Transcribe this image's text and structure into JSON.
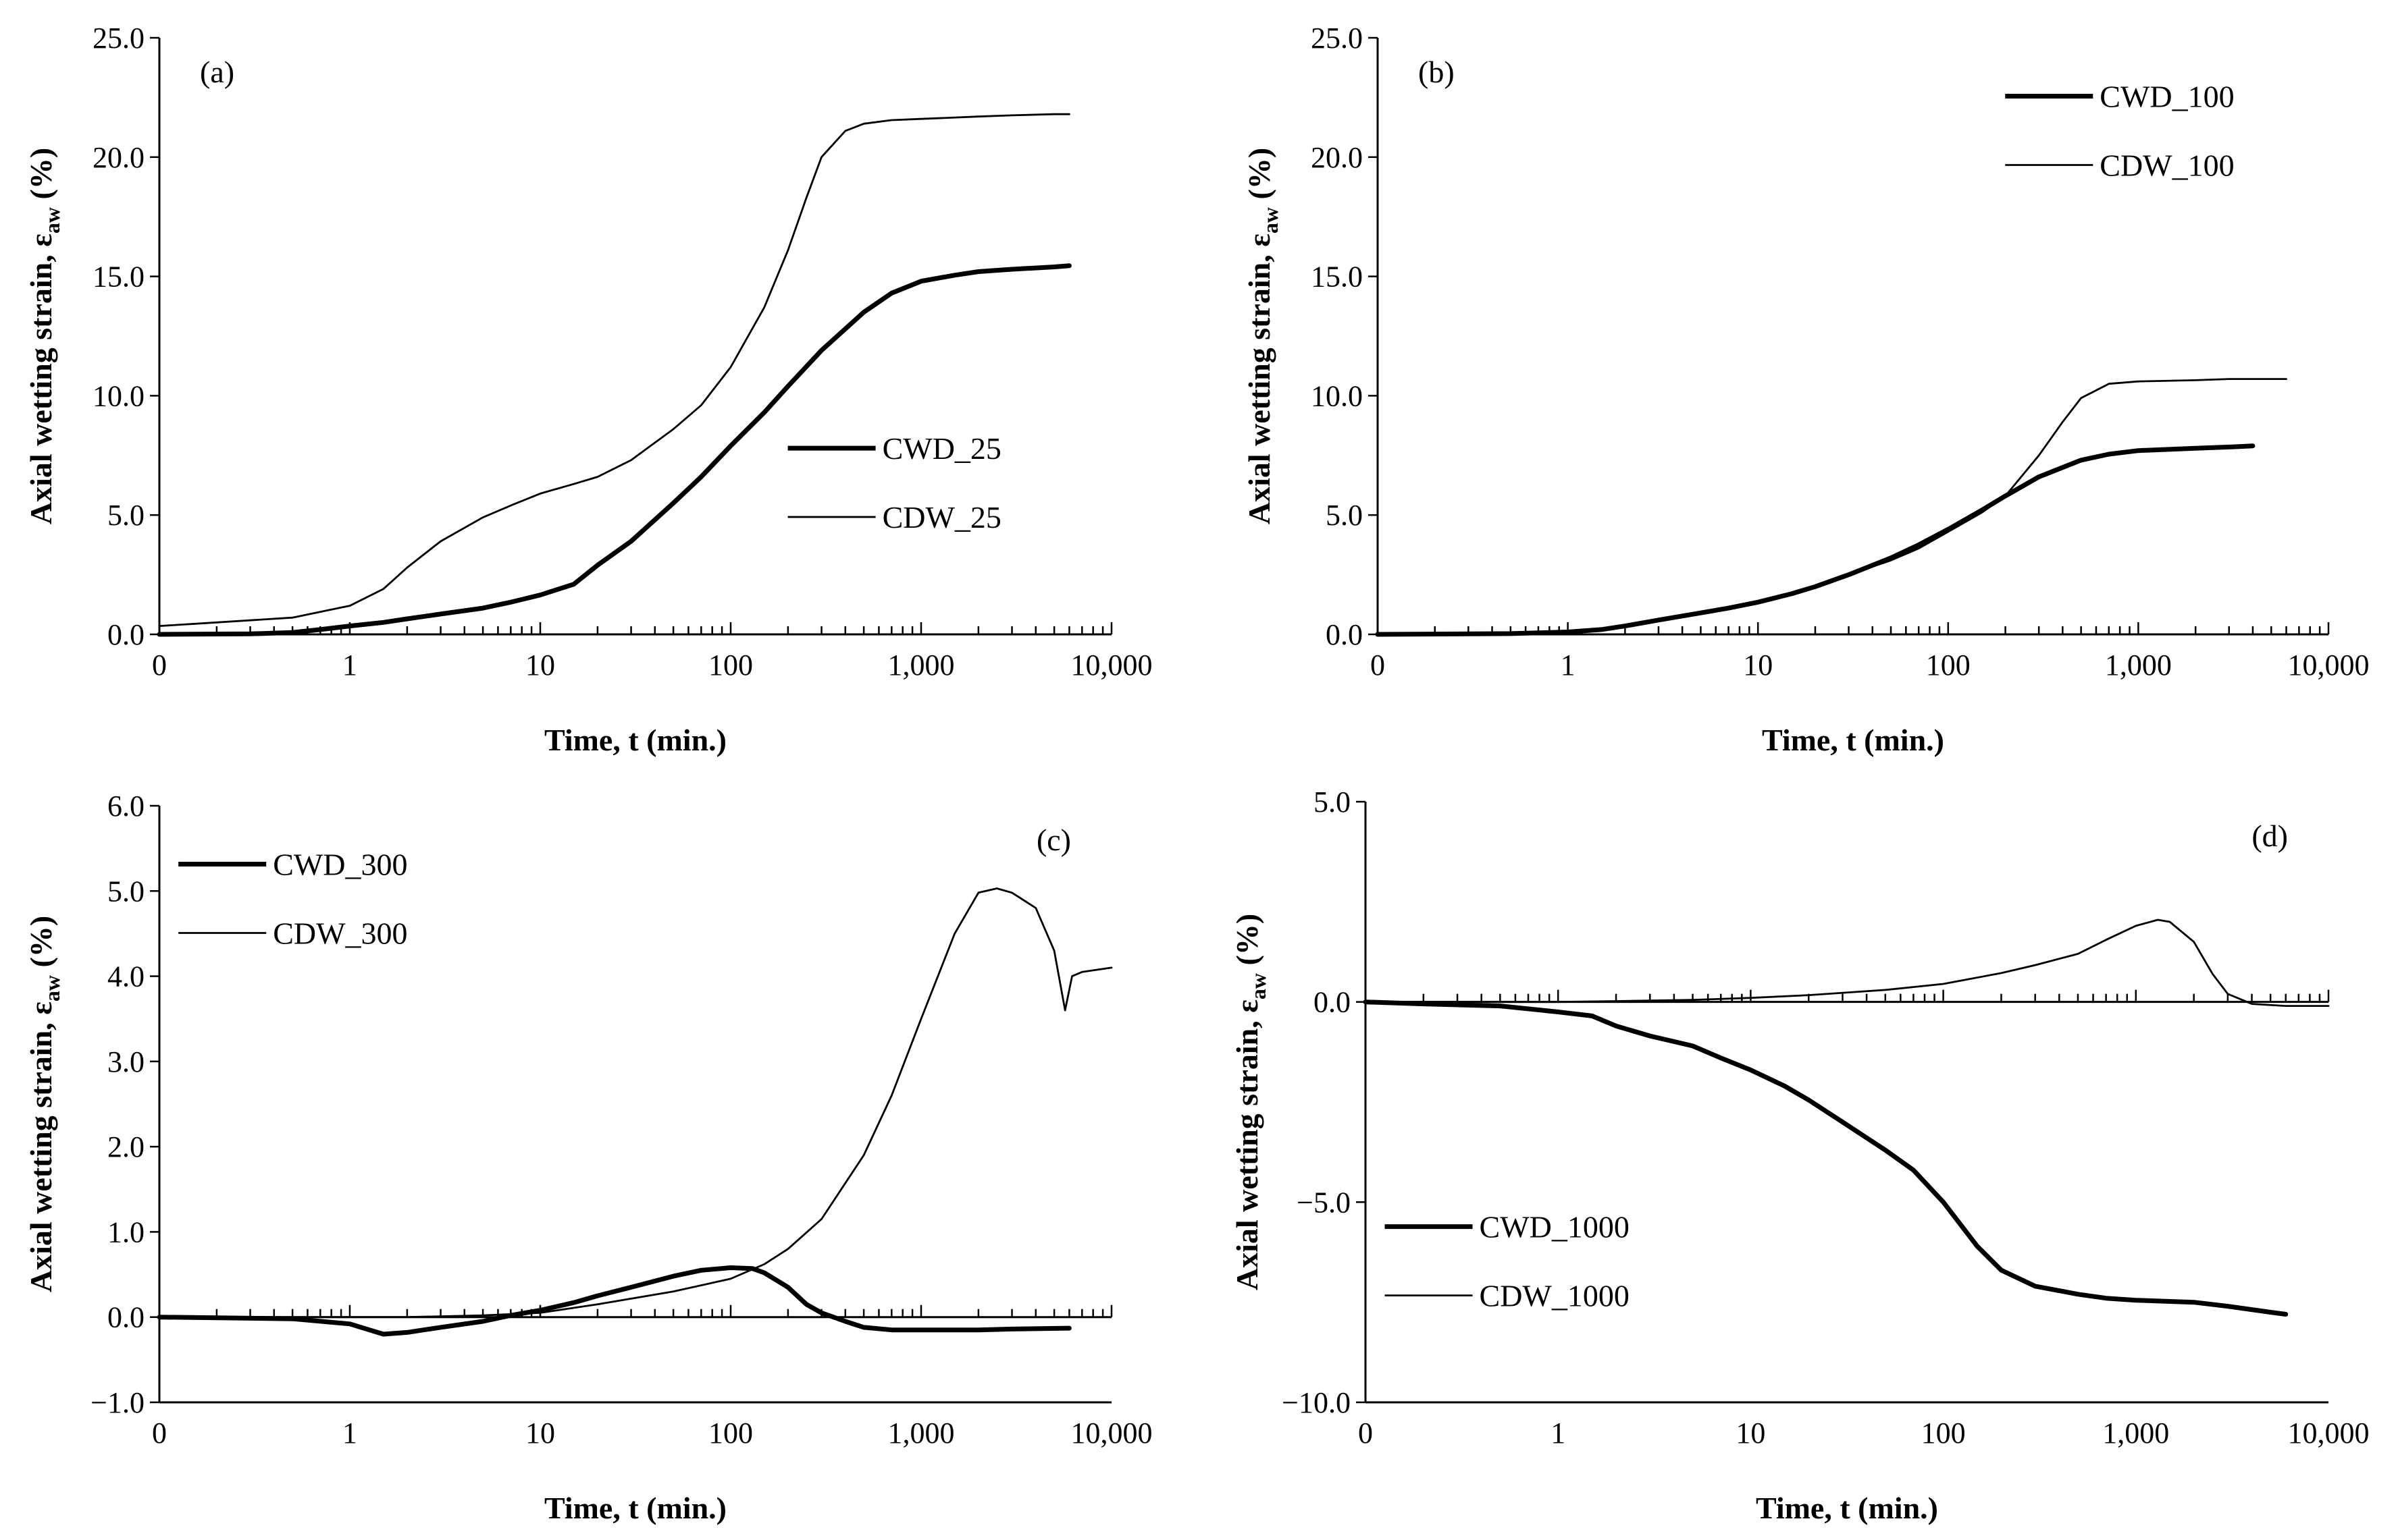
{
  "figure": {
    "x_axis_label": "Time, t (min.)",
    "y_axis_label_main": "Axial wetting strain, ",
    "y_axis_label_symbol": "ε",
    "y_axis_label_sub": "aw",
    "y_axis_label_unit": " (%)"
  },
  "chart_data": [
    {
      "type": "line",
      "panel": "(a)",
      "xscale": "log",
      "xlim": [
        0.1,
        10000
      ],
      "ylim": [
        0,
        25
      ],
      "x_ticks": [
        0.1,
        1,
        10,
        100,
        1000,
        10000
      ],
      "x_tick_labels": [
        "0",
        "1",
        "10",
        "100",
        "1,000",
        "10,000"
      ],
      "y_ticks": [
        0,
        5,
        10,
        15,
        20,
        25
      ],
      "y_tick_labels": [
        "0.0",
        "5.0",
        "10.0",
        "15.0",
        "20.0",
        "25.0"
      ],
      "legend_position": "bottom-right",
      "xlabel": "Time, t (min.)",
      "ylabel": "Axial wetting strain, εaw (%)",
      "series": [
        {
          "name": "CWD_25",
          "style": "thick",
          "x": [
            0.1,
            0.3,
            0.5,
            0.7,
            1,
            1.5,
            2,
            3,
            5,
            7,
            10,
            15,
            20,
            30,
            50,
            70,
            100,
            150,
            200,
            300,
            500,
            700,
            1000,
            1500,
            2000,
            3000,
            5000,
            6000
          ],
          "y": [
            0,
            0.02,
            0.08,
            0.2,
            0.35,
            0.5,
            0.65,
            0.85,
            1.1,
            1.35,
            1.65,
            2.1,
            2.9,
            3.9,
            5.5,
            6.6,
            7.9,
            9.3,
            10.4,
            11.9,
            13.5,
            14.3,
            14.8,
            15.05,
            15.2,
            15.3,
            15.4,
            15.45
          ]
        },
        {
          "name": "CDW_25",
          "style": "thin",
          "x": [
            0.1,
            0.2,
            0.5,
            1,
            1.5,
            2,
            3,
            5,
            7,
            10,
            15,
            20,
            30,
            50,
            70,
            100,
            150,
            200,
            250,
            300,
            400,
            500,
            700,
            1000,
            2000,
            3000,
            5000,
            6000
          ],
          "y": [
            0.35,
            0.5,
            0.7,
            1.2,
            1.9,
            2.8,
            3.9,
            4.9,
            5.4,
            5.9,
            6.3,
            6.6,
            7.3,
            8.6,
            9.6,
            11.2,
            13.7,
            16.1,
            18.3,
            20.0,
            21.1,
            21.4,
            21.55,
            21.6,
            21.7,
            21.75,
            21.8,
            21.8
          ]
        }
      ]
    },
    {
      "type": "line",
      "panel": "(b)",
      "xscale": "log",
      "xlim": [
        0.1,
        10000
      ],
      "ylim": [
        0,
        25
      ],
      "x_ticks": [
        0.1,
        1,
        10,
        100,
        1000,
        10000
      ],
      "x_tick_labels": [
        "0",
        "1",
        "10",
        "100",
        "1,000",
        "10,000"
      ],
      "y_ticks": [
        0,
        5,
        10,
        15,
        20,
        25
      ],
      "y_tick_labels": [
        "0.0",
        "5.0",
        "10.0",
        "15.0",
        "20.0",
        "25.0"
      ],
      "legend_position": "top-right",
      "xlabel": "Time, t (min.)",
      "ylabel": "Axial wetting strain, εaw (%)",
      "series": [
        {
          "name": "CWD_100",
          "style": "thick",
          "x": [
            0.1,
            0.5,
            1,
            1.5,
            2,
            3,
            5,
            7,
            10,
            15,
            20,
            30,
            50,
            70,
            100,
            150,
            200,
            300,
            500,
            700,
            1000,
            2000,
            3000,
            4000
          ],
          "y": [
            0,
            0.03,
            0.1,
            0.2,
            0.35,
            0.6,
            0.9,
            1.1,
            1.35,
            1.7,
            2.0,
            2.5,
            3.2,
            3.75,
            4.4,
            5.2,
            5.8,
            6.6,
            7.3,
            7.55,
            7.7,
            7.8,
            7.85,
            7.9
          ]
        },
        {
          "name": "CDW_100",
          "style": "thin",
          "x": [
            0.1,
            0.5,
            1,
            1.5,
            2,
            3,
            5,
            7,
            10,
            15,
            20,
            30,
            50,
            70,
            100,
            150,
            200,
            300,
            400,
            500,
            700,
            1000,
            2000,
            3000,
            6000
          ],
          "y": [
            0,
            0.03,
            0.1,
            0.2,
            0.35,
            0.6,
            0.9,
            1.1,
            1.35,
            1.7,
            2.0,
            2.5,
            3.1,
            3.6,
            4.3,
            5.1,
            5.8,
            7.5,
            8.9,
            9.9,
            10.5,
            10.6,
            10.65,
            10.7,
            10.7
          ]
        }
      ]
    },
    {
      "type": "line",
      "panel": "(c)",
      "xscale": "log",
      "xlim": [
        0.1,
        10000
      ],
      "ylim": [
        -1,
        6
      ],
      "x_ticks": [
        0.1,
        1,
        10,
        100,
        1000,
        10000
      ],
      "x_tick_labels": [
        "0",
        "1",
        "10",
        "100",
        "1,000",
        "10,000"
      ],
      "y_ticks": [
        -1,
        0,
        1,
        2,
        3,
        4,
        5,
        6
      ],
      "y_tick_labels": [
        "−1.0",
        "0.0",
        "1.0",
        "2.0",
        "3.0",
        "4.0",
        "5.0",
        "6.0"
      ],
      "legend_position": "top-left",
      "xlabel": "Time, t (min.)",
      "ylabel": "Axial wetting strain, εaw (%)",
      "series": [
        {
          "name": "CWD_300",
          "style": "thick",
          "x": [
            0.1,
            0.5,
            1,
            1.5,
            2,
            3,
            5,
            7,
            10,
            15,
            20,
            30,
            50,
            70,
            100,
            130,
            150,
            200,
            250,
            300,
            400,
            500,
            700,
            1000,
            2000,
            3000,
            6000
          ],
          "y": [
            0,
            -0.02,
            -0.08,
            -0.2,
            -0.18,
            -0.12,
            -0.05,
            0.02,
            0.08,
            0.17,
            0.25,
            0.35,
            0.48,
            0.55,
            0.58,
            0.57,
            0.52,
            0.35,
            0.15,
            0.05,
            -0.05,
            -0.12,
            -0.15,
            -0.15,
            -0.15,
            -0.14,
            -0.13
          ]
        },
        {
          "name": "CDW_300",
          "style": "thin",
          "x": [
            0.1,
            0.5,
            1,
            2,
            5,
            10,
            20,
            50,
            100,
            150,
            200,
            300,
            500,
            700,
            1000,
            1500,
            2000,
            2500,
            3000,
            4000,
            5000,
            5700,
            6200,
            7000,
            10000
          ],
          "y": [
            0,
            0,
            0,
            0,
            0.02,
            0.05,
            0.15,
            0.3,
            0.45,
            0.62,
            0.8,
            1.15,
            1.9,
            2.6,
            3.5,
            4.5,
            4.98,
            5.03,
            4.98,
            4.8,
            4.3,
            3.6,
            4.0,
            4.05,
            4.1
          ]
        }
      ]
    },
    {
      "type": "line",
      "panel": "(d)",
      "xscale": "log",
      "xlim": [
        0.1,
        10000
      ],
      "ylim": [
        -10,
        5
      ],
      "x_ticks": [
        0.1,
        1,
        10,
        100,
        1000,
        10000
      ],
      "x_tick_labels": [
        "0",
        "1",
        "10",
        "100",
        "1,000",
        "10,000"
      ],
      "y_ticks": [
        -10,
        -5,
        0,
        5
      ],
      "y_tick_labels": [
        "−10.0",
        "−5.0",
        "0.0",
        "5.0"
      ],
      "legend_position": "bottom-left",
      "xlabel": "Time, t (min.)",
      "ylabel": "Axial wetting strain, εaw (%)",
      "series": [
        {
          "name": "CWD_1000",
          "style": "thick",
          "x": [
            0.1,
            0.2,
            0.5,
            1,
            1.5,
            2,
            3,
            5,
            7,
            10,
            15,
            20,
            30,
            50,
            70,
            100,
            150,
            200,
            300,
            500,
            700,
            1000,
            2000,
            3000,
            5000,
            6000
          ],
          "y": [
            0,
            -0.05,
            -0.1,
            -0.25,
            -0.35,
            -0.6,
            -0.85,
            -1.1,
            -1.4,
            -1.7,
            -2.1,
            -2.45,
            -3.0,
            -3.7,
            -4.2,
            -5.0,
            -6.1,
            -6.7,
            -7.1,
            -7.3,
            -7.4,
            -7.45,
            -7.5,
            -7.6,
            -7.75,
            -7.8
          ]
        },
        {
          "name": "CDW_1000",
          "style": "thin",
          "x": [
            0.1,
            0.5,
            1,
            2,
            5,
            10,
            20,
            50,
            100,
            200,
            300,
            500,
            700,
            1000,
            1300,
            1500,
            2000,
            2500,
            3000,
            4000,
            6000,
            10000
          ],
          "y": [
            0,
            0,
            0,
            0.02,
            0.05,
            0.1,
            0.17,
            0.3,
            0.45,
            0.72,
            0.92,
            1.2,
            1.55,
            1.9,
            2.05,
            2.0,
            1.5,
            0.7,
            0.2,
            -0.05,
            -0.1,
            -0.1
          ]
        }
      ]
    }
  ]
}
